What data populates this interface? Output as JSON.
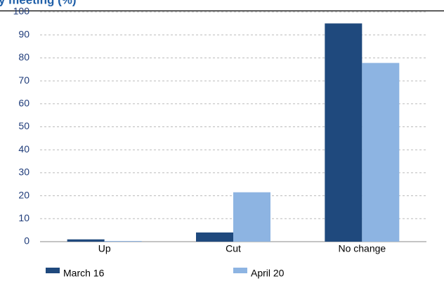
{
  "chart_data": {
    "type": "bar",
    "title": "y meeting (%)",
    "categories": [
      "Up",
      "Cut",
      "No change"
    ],
    "series": [
      {
        "name": "March 16",
        "color": "#1f497d",
        "values": [
          1,
          4,
          95
        ]
      },
      {
        "name": "April 20",
        "color": "#8db4e2",
        "values": [
          0.3,
          21.5,
          77.8
        ]
      }
    ],
    "ylim": [
      0,
      100
    ],
    "yticks": [
      0,
      10,
      20,
      30,
      40,
      50,
      60,
      70,
      80,
      90,
      100
    ],
    "grid": true,
    "legend": "bottom"
  }
}
